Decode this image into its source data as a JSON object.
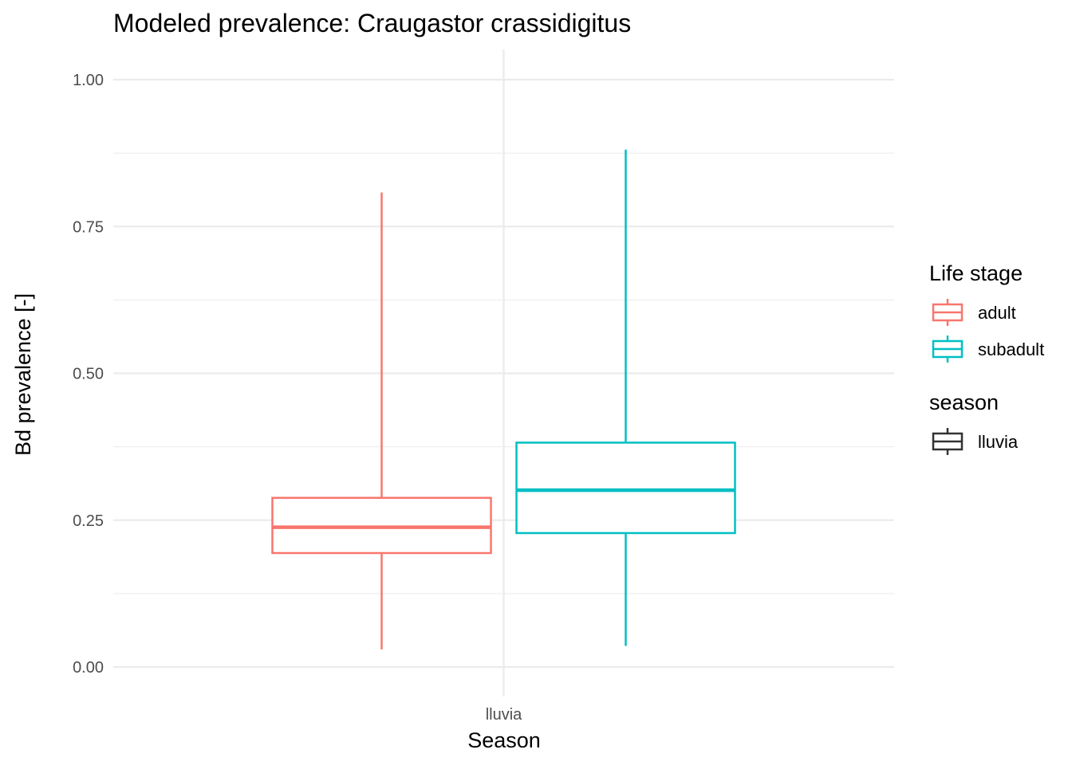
{
  "chart_data": {
    "type": "boxplot",
    "title": "Modeled prevalence: Craugastor crassidigitus",
    "xlabel": "Season",
    "ylabel": "Bd prevalence [-]",
    "categories": [
      "lluvia"
    ],
    "ylim": [
      -0.05,
      1.05
    ],
    "yticks": [
      0.0,
      0.25,
      0.5,
      0.75,
      1.0
    ],
    "ytick_labels": [
      "0.00",
      "0.25",
      "0.50",
      "0.75",
      "1.00"
    ],
    "grid": true,
    "legend_position": "right",
    "series": [
      {
        "name": "adult",
        "color": "#F8766D",
        "min": 0.03,
        "q1": 0.194,
        "median": 0.238,
        "q3": 0.288,
        "max": 0.808
      },
      {
        "name": "subadult",
        "color": "#00BFC4",
        "min": 0.036,
        "q1": 0.228,
        "median": 0.301,
        "q3": 0.382,
        "max": 0.881
      }
    ],
    "legends": [
      {
        "title": "Life stage",
        "entries": [
          {
            "label": "adult",
            "color": "#F8766D"
          },
          {
            "label": "subadult",
            "color": "#00BFC4"
          }
        ]
      },
      {
        "title": "season",
        "entries": [
          {
            "label": "lluvia",
            "color": "#333333"
          }
        ]
      }
    ]
  }
}
